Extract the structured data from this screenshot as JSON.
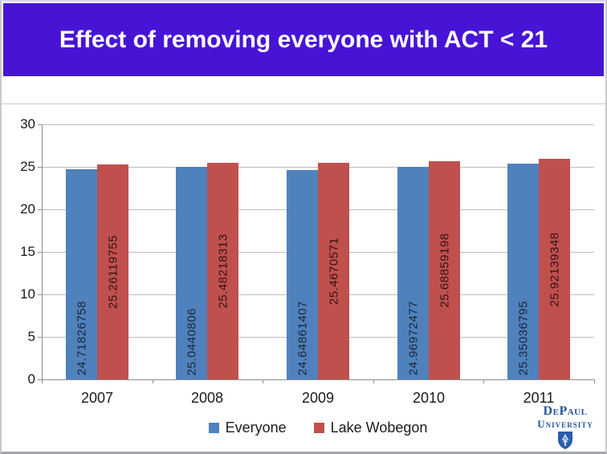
{
  "slide": {
    "title": "Effect of removing everyone with ACT < 21"
  },
  "colors": {
    "banner_bg": "#4714d6",
    "banner_text": "#ffffff",
    "gridline": "#bdbdbd",
    "axis": "#8e8e8e",
    "axis_text": "#1a1a1a",
    "logo_navy": "#24549c"
  },
  "chart_data": {
    "type": "bar",
    "title": "",
    "xlabel": "",
    "ylabel": "",
    "categories": [
      "2007",
      "2008",
      "2009",
      "2010",
      "2011"
    ],
    "series": [
      {
        "name": "Everyone",
        "color": "#4f81bd",
        "label_color": "#1e2434",
        "label_position": "inside_base",
        "values": [
          24.71826758,
          25.0440806,
          24.64861407,
          24.96972477,
          25.35036795
        ],
        "labels": [
          "24.71826758",
          "25.0440806",
          "24.64861407",
          "24.96972477",
          "25.35036795"
        ]
      },
      {
        "name": "Lake Wobegon",
        "color": "#c0504d",
        "label_color": "#301312",
        "label_position": "center",
        "values": [
          25.26119755,
          25.48218313,
          25.4670571,
          25.68859198,
          25.92139348
        ],
        "labels": [
          "25.26119755",
          "25.48218313",
          "25.4670571",
          "25.68859198",
          "25.92139348"
        ]
      }
    ],
    "ylim": [
      0,
      30
    ],
    "yticks": [
      0,
      5,
      10,
      15,
      20,
      25,
      30
    ],
    "grid": true,
    "legend_position": "bottom"
  },
  "logo": {
    "line1": "DePaul",
    "line2": "University"
  }
}
